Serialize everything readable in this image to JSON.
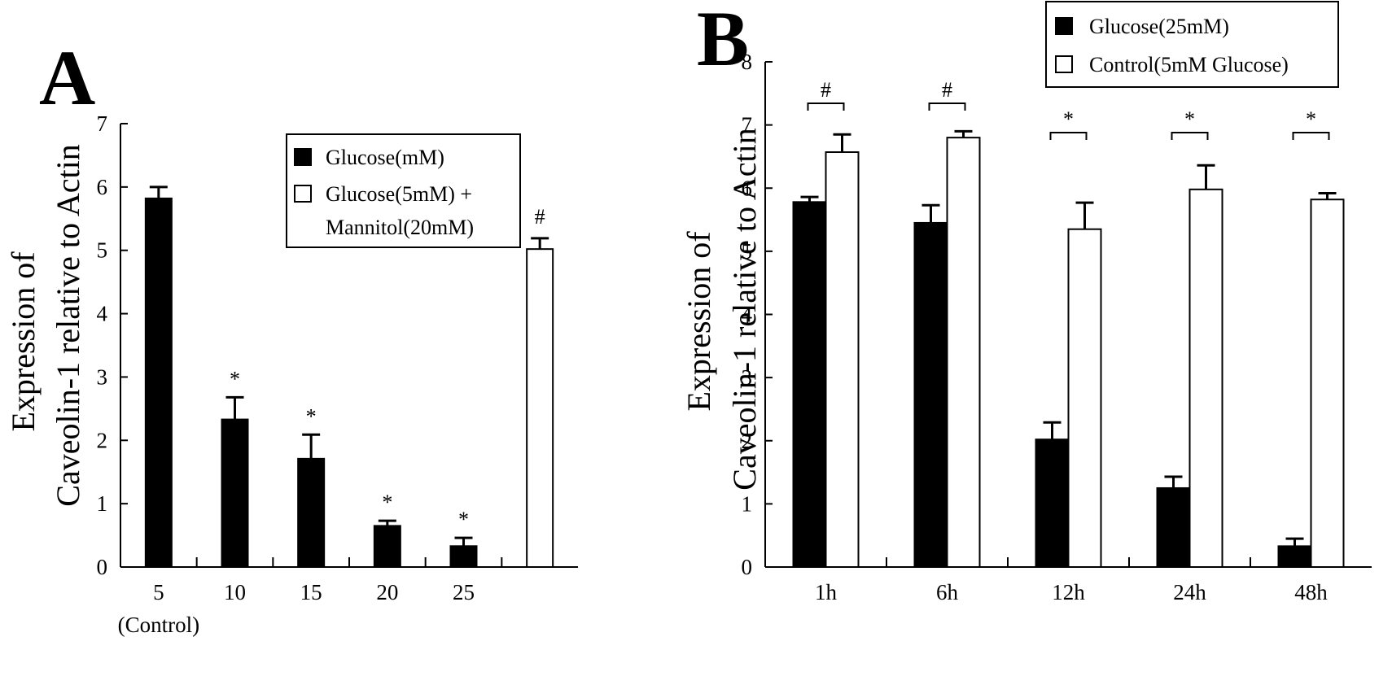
{
  "chart_data": [
    {
      "panel": "A",
      "type": "bar",
      "ylabel_line1": "Expression of",
      "ylabel_line2": "Caveolin-1 relative to Actin",
      "ylim": [
        0,
        7
      ],
      "yticks": [
        0,
        1,
        2,
        3,
        4,
        5,
        6,
        7
      ],
      "categories": [
        "5",
        "10",
        "15",
        "20",
        "25",
        ""
      ],
      "category_sublabels": [
        "(Control)",
        "",
        "",
        "",
        "",
        ""
      ],
      "series": [
        {
          "name": "Glucose(mM)",
          "fill": "black",
          "values": [
            5.82,
            2.33,
            1.71,
            0.65,
            0.33,
            null
          ],
          "errors": [
            0.18,
            0.35,
            0.38,
            0.08,
            0.13,
            null
          ],
          "annotations": [
            "",
            "*",
            "*",
            "*",
            "*",
            ""
          ]
        },
        {
          "name_line1": "Glucose(5mM) +",
          "name_line2": "Mannitol(20mM)",
          "fill": "white",
          "values": [
            null,
            null,
            null,
            null,
            null,
            5.02
          ],
          "errors": [
            null,
            null,
            null,
            null,
            null,
            0.17
          ],
          "annotations": [
            "",
            "",
            "",
            "",
            "",
            "#"
          ]
        }
      ],
      "legend_position": "top-right"
    },
    {
      "panel": "B",
      "type": "bar",
      "ylabel_line1": "Expression of",
      "ylabel_line2": "Caveolin-1 relative to Actin",
      "ylim": [
        0,
        8
      ],
      "yticks": [
        0,
        1,
        2,
        3,
        4,
        5,
        6,
        7,
        8
      ],
      "categories": [
        "1h",
        "6h",
        "12h",
        "24h",
        "48h"
      ],
      "series": [
        {
          "name": "Glucose(25mM)",
          "fill": "black",
          "values": [
            5.78,
            5.45,
            2.02,
            1.25,
            0.33
          ],
          "errors": [
            0.08,
            0.28,
            0.27,
            0.18,
            0.12
          ]
        },
        {
          "name": "Control(5mM Glucose)",
          "fill": "white",
          "values": [
            6.57,
            6.8,
            5.35,
            5.98,
            5.82
          ],
          "errors": [
            0.28,
            0.1,
            0.42,
            0.38,
            0.1
          ]
        }
      ],
      "comparisons": [
        "#",
        "#",
        "*",
        "*",
        "*"
      ],
      "legend_position": "top-right"
    }
  ]
}
